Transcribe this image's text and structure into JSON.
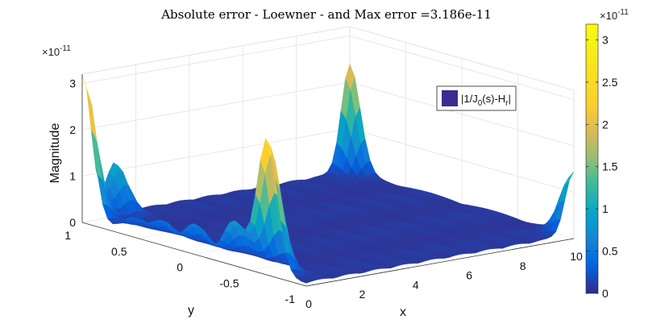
{
  "chart_data": {
    "type": "surface3d",
    "title": "Absolute error - Loewner - and Max error =3.186e-11",
    "zlabel": "Magnitude",
    "xlabel": "x",
    "ylabel": "y",
    "z_exponent_label": "×10",
    "z_exponent_power": "-11",
    "colorbar_exponent_label": "×10",
    "colorbar_exponent_power": "-11",
    "legend_entry": {
      "prefix": "|1/J",
      "sub1": "0",
      "mid": "(s)-H",
      "sub2": "r",
      "suffix": "|"
    },
    "legend_color": "#3d2c8f",
    "x_ticks": [
      "0",
      "2",
      "4",
      "6",
      "8",
      "10"
    ],
    "y_ticks": [
      "1",
      "0.5",
      "0",
      "-0.5",
      "-1"
    ],
    "z_ticks": [
      "0",
      "1",
      "2",
      "3"
    ],
    "colorbar_ticks": [
      "0",
      "0.5",
      "1",
      "1.5",
      "2",
      "2.5",
      "3"
    ],
    "xlim": [
      0,
      10
    ],
    "ylim": [
      -1,
      1
    ],
    "zlim": [
      0,
      3.2
    ],
    "colorbar_lim": [
      0,
      3.186
    ],
    "max_error": 3.186,
    "colormap": "parula",
    "peaks": [
      {
        "x": 0.0,
        "y": 1.0,
        "z": 3.186
      },
      {
        "x": 0.0,
        "y": -0.65,
        "z": 2.9
      },
      {
        "x": 10.0,
        "y": 1.0,
        "z": 2.3
      },
      {
        "x": 10.0,
        "y": -1.0,
        "z": 1.35
      },
      {
        "x": 1.2,
        "y": 1.0,
        "z": 1.1
      },
      {
        "x": 0.0,
        "y": -0.35,
        "z": 0.9
      },
      {
        "x": 0.0,
        "y": 0.0,
        "z": 0.6
      },
      {
        "x": 0.0,
        "y": 0.3,
        "z": 0.45
      },
      {
        "x": 0.0,
        "y": 0.55,
        "z": 0.35
      }
    ],
    "grid": true
  }
}
